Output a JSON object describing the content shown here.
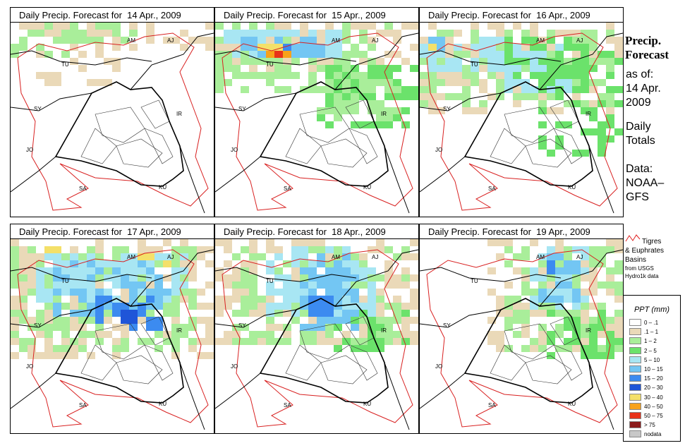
{
  "panels": [
    {
      "title": "Daily Precip. Forecast for  14 Apr., 2009"
    },
    {
      "title": "Daily Precip. Forecast for  15 Apr., 2009"
    },
    {
      "title": "Daily Precip. Forecast for  16 Apr., 2009"
    },
    {
      "title": "Daily Precip. Forecast for  17 Apr., 2009"
    },
    {
      "title": "Daily Precip. Forecast for  18 Apr., 2009"
    },
    {
      "title": "Daily Precip. Forecast for  19 Apr., 2009"
    }
  ],
  "map_labels": {
    "am": "AM",
    "aj": "AJ",
    "tu": "TU",
    "sy": "SY",
    "ir": "IR",
    "jo": "JO",
    "sa": "SA",
    "ku": "KU"
  },
  "side": {
    "title1": "Precip.",
    "title2": "Forecast",
    "asof": "as of:",
    "date1": "14 Apr.",
    "date2": "2009",
    "daily1": "Daily",
    "daily2": "Totals",
    "data1": "Data:",
    "data2": "NOAA–",
    "data3": "GFS"
  },
  "basin_legend": {
    "line1": "Tigres",
    "line2": "& Euphrates",
    "line3": "Basins",
    "line4": "from USGS",
    "line5": "Hydro1k data"
  },
  "legend": {
    "title": "PPT (mm)",
    "classes": [
      {
        "label": "0 – .1",
        "color": "#ffffff"
      },
      {
        "label": ".1 – 1",
        "color": "#ead9b8"
      },
      {
        "label": "1 – 2",
        "color": "#a9ee9a"
      },
      {
        "label": "2 – 5",
        "color": "#6be26b"
      },
      {
        "label": "5 – 10",
        "color": "#a8e6f3"
      },
      {
        "label": "10 – 15",
        "color": "#73c6f3"
      },
      {
        "label": "15 – 20",
        "color": "#3c8bf0"
      },
      {
        "label": "20 – 30",
        "color": "#1f55d8"
      },
      {
        "label": "30 – 40",
        "color": "#f4e069"
      },
      {
        "label": "40 – 50",
        "color": "#f7a21a"
      },
      {
        "label": "50 – 75",
        "color": "#e8321a"
      },
      {
        "label": "> 75",
        "color": "#8b1a1a"
      },
      {
        "label": "nodata",
        "color": "#c8c8c8"
      }
    ]
  }
}
